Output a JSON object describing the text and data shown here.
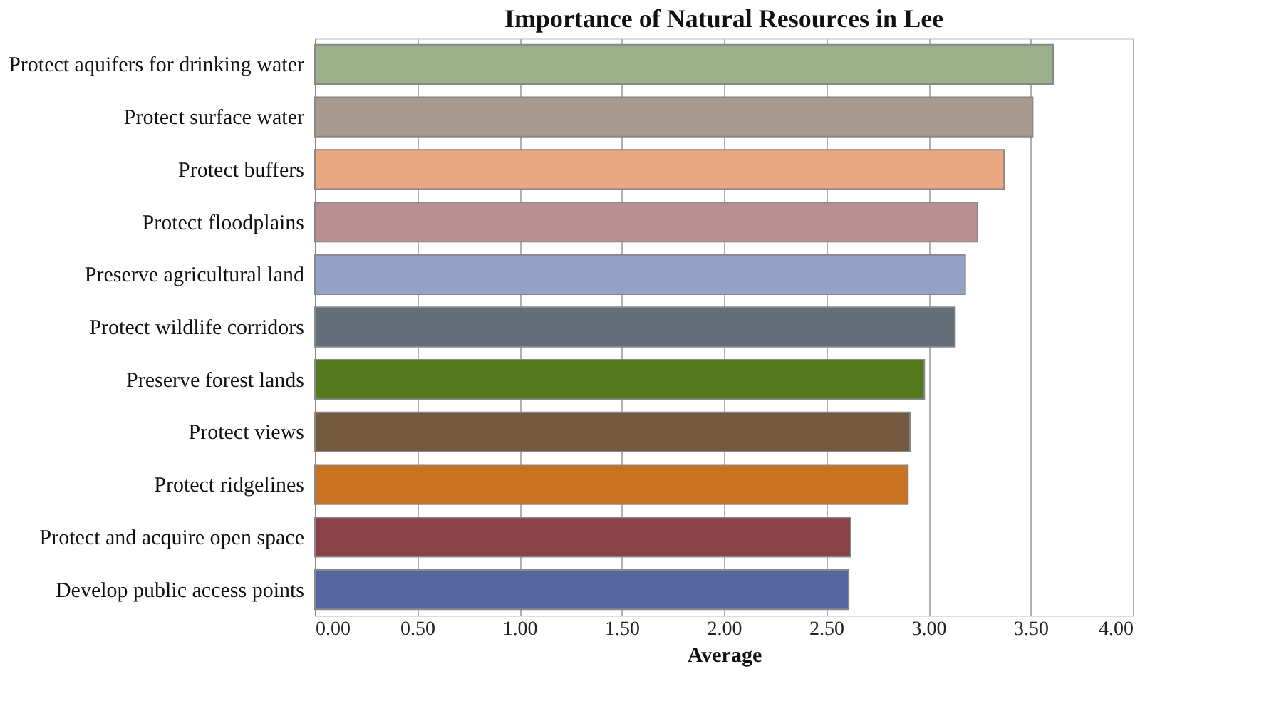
{
  "chart_data": {
    "type": "bar",
    "orientation": "horizontal",
    "title": "Importance of Natural Resources in Lee",
    "xlabel": "Average",
    "categories": [
      "Protect aquifers for drinking water",
      "Protect surface water",
      "Protect buffers",
      "Protect floodplains",
      "Preserve agricultural land",
      "Protect wildlife corridors",
      "Preserve forest lands",
      "Protect views",
      "Protect ridgelines",
      "Protect and acquire open space",
      "Develop public access points"
    ],
    "values": [
      3.61,
      3.51,
      3.37,
      3.24,
      3.18,
      3.13,
      2.98,
      2.91,
      2.9,
      2.62,
      2.61
    ],
    "colors": [
      "#9bb08a",
      "#a89a8e",
      "#eaa882",
      "#b99091",
      "#94a2c6",
      "#646e78",
      "#557a1e",
      "#735a3e",
      "#c9721f",
      "#8b4148",
      "#5466a0"
    ],
    "xlim": [
      0,
      4
    ],
    "xticks": [
      {
        "value": 0,
        "label": "0.00"
      },
      {
        "value": 0.5,
        "label": "0.50"
      },
      {
        "value": 1,
        "label": "1.00"
      },
      {
        "value": 1.5,
        "label": "1.50"
      },
      {
        "value": 2,
        "label": "2.00"
      },
      {
        "value": 2.5,
        "label": "2.50"
      },
      {
        "value": 3,
        "label": "3.00"
      },
      {
        "value": 3.5,
        "label": "3.50"
      },
      {
        "value": 4,
        "label": "4.00"
      }
    ],
    "grid": "x"
  }
}
